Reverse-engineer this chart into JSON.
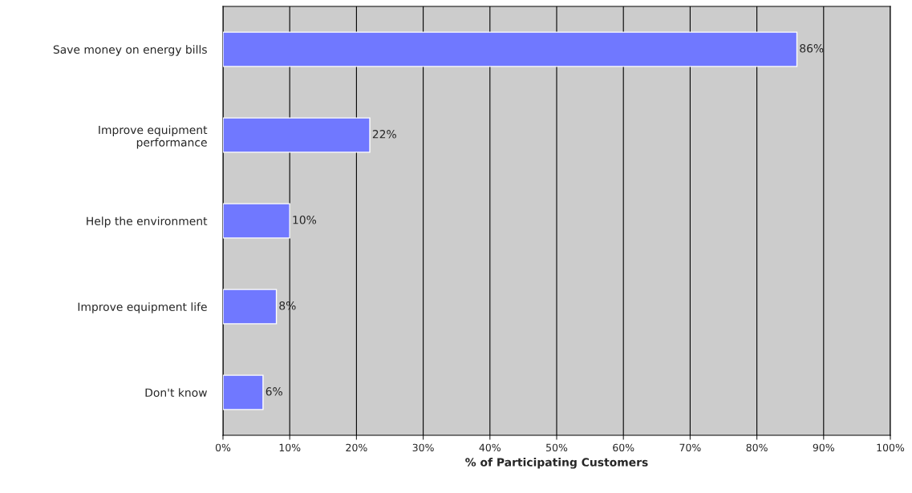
{
  "chart_data": {
    "type": "bar",
    "orientation": "horizontal",
    "xlabel": "% of Participating Customers",
    "categories": [
      "Save money on energy bills",
      "Improve equipment\nperformance",
      "Help the environment",
      "Improve equipment life",
      "Don't know"
    ],
    "values": [
      86,
      22,
      10,
      8,
      6
    ],
    "value_labels": [
      "86%",
      "22%",
      "10%",
      "8%",
      "6%"
    ],
    "color": "#7078ff",
    "xlim": [
      0,
      100
    ],
    "xticks": [
      {
        "value": 0,
        "label": "0%"
      },
      {
        "value": 10,
        "label": "10%"
      },
      {
        "value": 20,
        "label": "20%"
      },
      {
        "value": 30,
        "label": "30%"
      },
      {
        "value": 40,
        "label": "40%"
      },
      {
        "value": 50,
        "label": "50%"
      },
      {
        "value": 60,
        "label": "60%"
      },
      {
        "value": 70,
        "label": "70%"
      },
      {
        "value": 80,
        "label": "80%"
      },
      {
        "value": 90,
        "label": "90%"
      },
      {
        "value": 100,
        "label": "100%"
      }
    ],
    "grid": "x",
    "legend": false
  }
}
